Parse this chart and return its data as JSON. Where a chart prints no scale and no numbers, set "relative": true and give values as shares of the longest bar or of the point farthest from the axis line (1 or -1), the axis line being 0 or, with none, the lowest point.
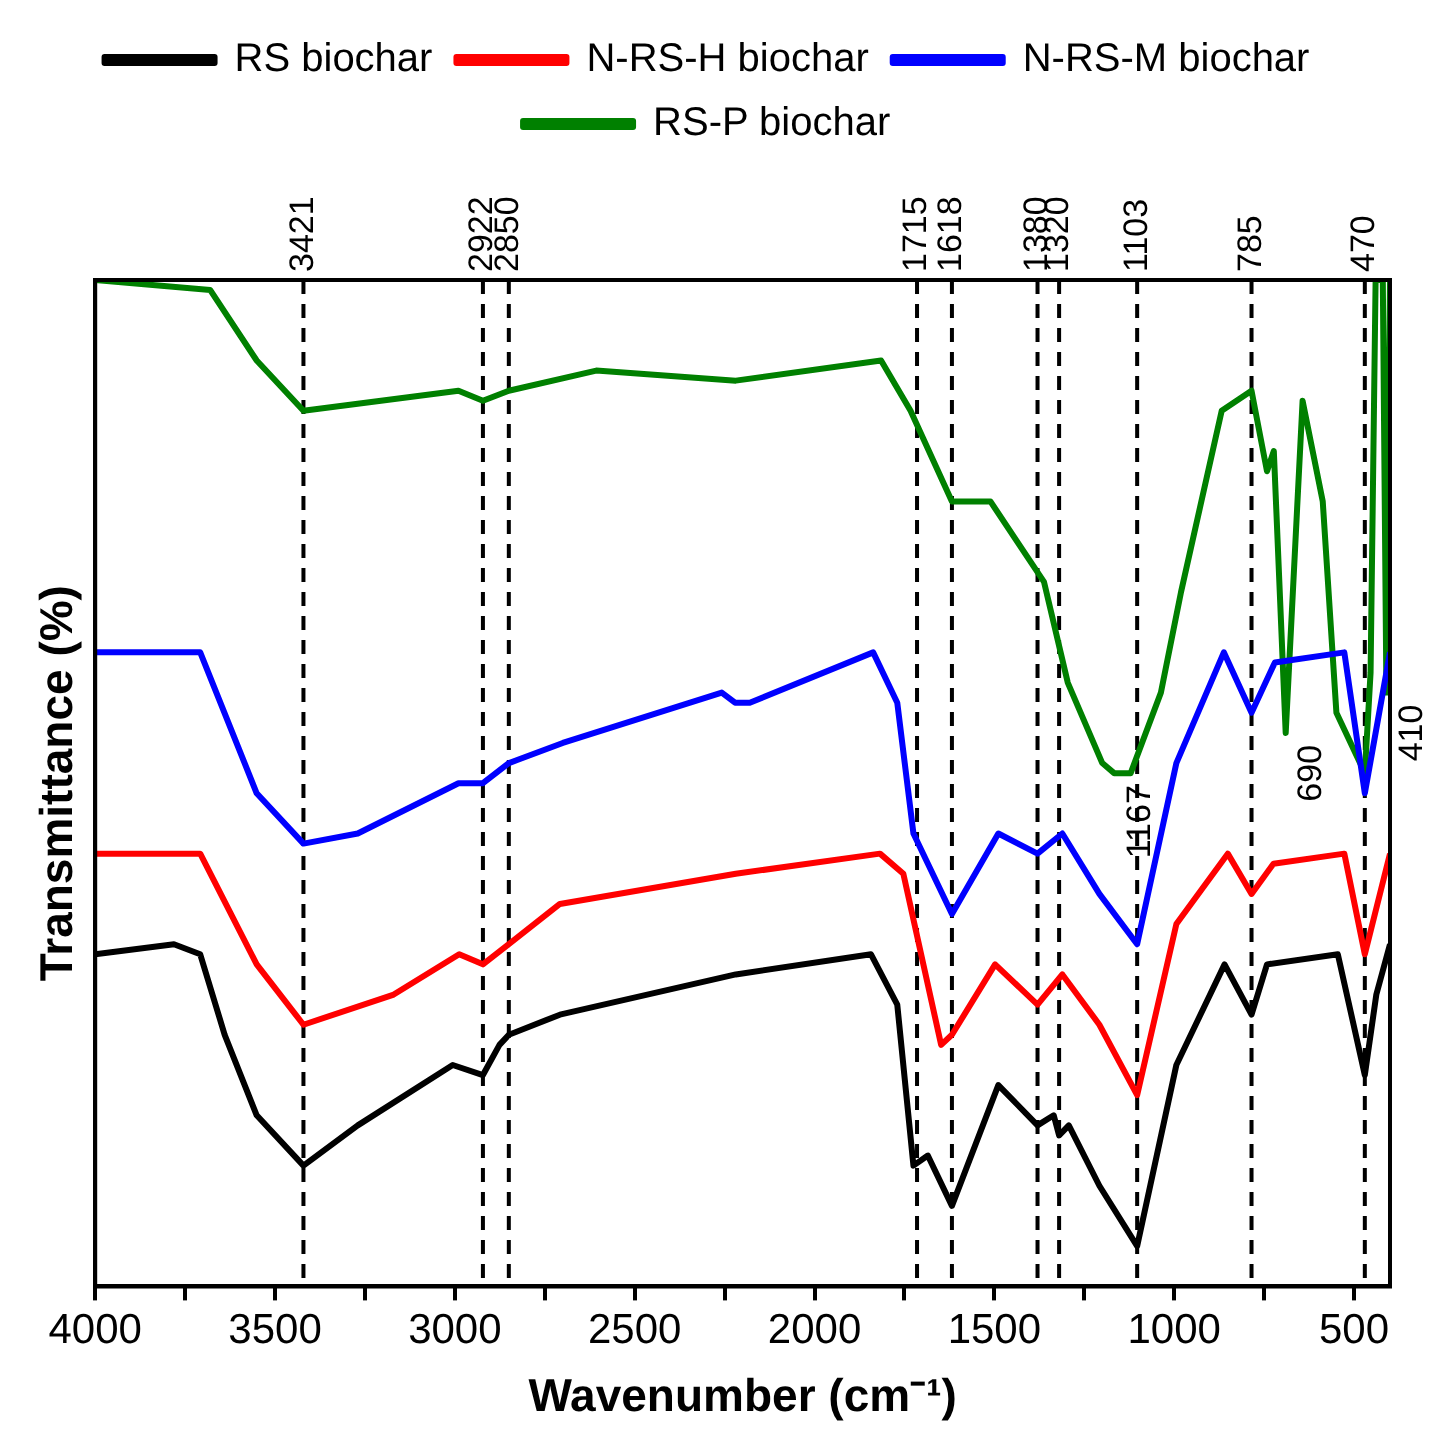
{
  "chart_data": {
    "type": "line",
    "xlabel": "Wavenumber (cm⁻¹)",
    "ylabel": "Transmittance (%)",
    "relative": true,
    "legend": "top",
    "marker": "none",
    "line_style": "solid",
    "grid": false,
    "xlim": [
      4000,
      400
    ],
    "xticks": [
      4000,
      {
        "value": 3750,
        "label": null
      },
      3500,
      {
        "value": 3250,
        "label": null
      },
      3000,
      {
        "value": 2750,
        "label": null
      },
      2500,
      {
        "value": 2250,
        "label": null
      },
      2000,
      {
        "value": 1750,
        "label": null
      },
      1500,
      {
        "value": 1250,
        "label": null
      },
      1000,
      {
        "value": 750,
        "label": null
      },
      500
    ],
    "series": [
      {
        "name": "RS biochar",
        "color": "#000000",
        "x": [
          4000,
          3781,
          3708,
          3640,
          3551,
          3421,
          3270,
          3006,
          2922,
          2876,
          2850,
          2708,
          2219,
          1843,
          1770,
          1725,
          1685,
          1618,
          1489,
          1380,
          1335,
          1320,
          1293,
          1208,
          1103,
          994,
          860,
          785,
          742,
          545,
          470,
          438,
          400
        ],
        "values": [
          0.33,
          0.34,
          0.33,
          0.25,
          0.17,
          0.12,
          0.16,
          0.22,
          0.21,
          0.24,
          0.25,
          0.27,
          0.31,
          0.33,
          0.28,
          0.12,
          0.13,
          0.08,
          0.2,
          0.16,
          0.17,
          0.15,
          0.16,
          0.1,
          0.04,
          0.22,
          0.32,
          0.27,
          0.32,
          0.33,
          0.21,
          0.29,
          0.34
        ]
      },
      {
        "name": "N-RS-H biochar",
        "color": "#ff0000",
        "x": [
          4000,
          3708,
          3551,
          3421,
          3170,
          2988,
          2922,
          2850,
          2708,
          2219,
          1818,
          1753,
          1648,
          1618,
          1498,
          1380,
          1311,
          1208,
          1103,
          994,
          851,
          785,
          724,
          527,
          470,
          400
        ],
        "values": [
          0.43,
          0.43,
          0.32,
          0.26,
          0.29,
          0.33,
          0.32,
          0.34,
          0.38,
          0.41,
          0.43,
          0.41,
          0.24,
          0.25,
          0.32,
          0.28,
          0.31,
          0.26,
          0.19,
          0.36,
          0.43,
          0.39,
          0.42,
          0.43,
          0.33,
          0.43
        ]
      },
      {
        "name": "N-RS-M biochar",
        "color": "#0000ff",
        "x": [
          4000,
          3708,
          3551,
          3421,
          3270,
          2990,
          2922,
          2850,
          2700,
          2258,
          2221,
          2180,
          1837,
          1770,
          1725,
          1618,
          1489,
          1380,
          1311,
          1208,
          1103,
          994,
          862,
          785,
          720,
          527,
          470,
          400
        ],
        "values": [
          0.63,
          0.63,
          0.49,
          0.44,
          0.45,
          0.5,
          0.5,
          0.52,
          0.54,
          0.59,
          0.58,
          0.58,
          0.63,
          0.58,
          0.45,
          0.37,
          0.45,
          0.43,
          0.45,
          0.39,
          0.34,
          0.52,
          0.63,
          0.57,
          0.62,
          0.63,
          0.49,
          0.63
        ]
      },
      {
        "name": "RS-P biochar",
        "color": "#008000",
        "x": [
          4000,
          3680,
          3551,
          3421,
          2990,
          2922,
          2850,
          2607,
          2219,
          1815,
          1733,
          1618,
          1511,
          1362,
          1296,
          1200,
          1167,
          1121,
          1037,
          981,
          868,
          785,
          742,
          723,
          690,
          643,
          615,
          587,
          549,
          470,
          454,
          440,
          420,
          410,
          400
        ],
        "values": [
          1,
          0.99,
          0.92,
          0.87,
          0.89,
          0.88,
          0.89,
          0.91,
          0.9,
          0.92,
          0.87,
          0.78,
          0.78,
          0.7,
          0.6,
          0.52,
          0.51,
          0.51,
          0.59,
          0.69,
          0.87,
          0.89,
          0.81,
          0.83,
          0.55,
          0.88,
          0.83,
          0.78,
          0.57,
          0.51,
          0.61,
          1,
          1,
          0.59,
          1
        ]
      }
    ],
    "ref_lines": [
      {
        "axis": "x",
        "value": 3421,
        "label": "3421",
        "color": "#000000",
        "line_style": "dashed"
      },
      {
        "axis": "x",
        "value": 2922,
        "label": "2922",
        "color": "#000000",
        "line_style": "dashed"
      },
      {
        "axis": "x",
        "value": 2850,
        "label": "2850",
        "color": "#000000",
        "line_style": "dashed"
      },
      {
        "axis": "x",
        "value": 1715,
        "label": "1715",
        "color": "#000000",
        "line_style": "dashed"
      },
      {
        "axis": "x",
        "value": 1618,
        "label": "1618",
        "color": "#000000",
        "line_style": "dashed"
      },
      {
        "axis": "x",
        "value": 1380,
        "label": "1380",
        "color": "#000000",
        "line_style": "dashed"
      },
      {
        "axis": "x",
        "value": 1320,
        "label": "1320",
        "color": "#000000",
        "line_style": "dashed"
      },
      {
        "axis": "x",
        "value": 1103,
        "label": "1103",
        "color": "#000000",
        "line_style": "dashed"
      },
      {
        "axis": "x",
        "value": 785,
        "label": "785",
        "color": "#000000",
        "line_style": "dashed"
      },
      {
        "axis": "x",
        "value": 470,
        "label": "470",
        "color": "#000000",
        "line_style": "dashed"
      }
    ],
    "annotations": [
      {
        "text": "1167",
        "x": 1167,
        "y": 0.51
      },
      {
        "text": "690",
        "x": 690,
        "y": 0.55
      },
      {
        "text": "410",
        "x": 410,
        "y": 0.59
      }
    ]
  }
}
